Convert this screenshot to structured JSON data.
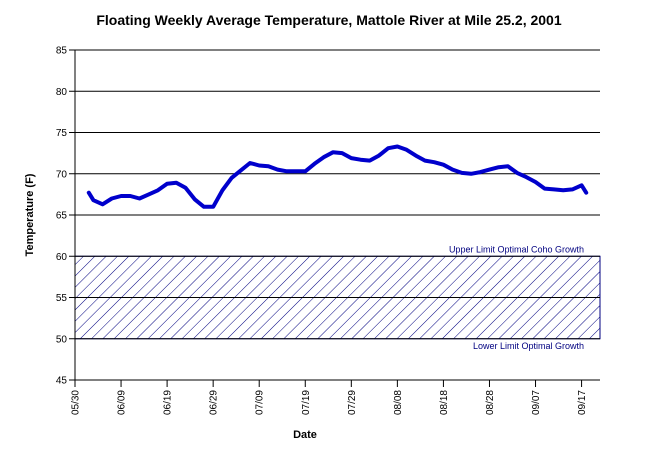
{
  "chart_data": {
    "type": "line",
    "title": "Floating Weekly Average Temperature, Mattole River at Mile 25.2, 2001",
    "xlabel": "Date",
    "ylabel": "Temperature (F)",
    "x": [
      "06/02",
      "06/03",
      "06/05",
      "06/07",
      "06/09",
      "06/11",
      "06/13",
      "06/15",
      "06/17",
      "06/19",
      "06/21",
      "06/23",
      "06/25",
      "06/27",
      "06/29",
      "07/01",
      "07/03",
      "07/05",
      "07/07",
      "07/09",
      "07/11",
      "07/13",
      "07/15",
      "07/17",
      "07/19",
      "07/21",
      "07/23",
      "07/25",
      "07/27",
      "07/29",
      "07/31",
      "08/02",
      "08/04",
      "08/06",
      "08/08",
      "08/10",
      "08/12",
      "08/14",
      "08/16",
      "08/18",
      "08/20",
      "08/22",
      "08/24",
      "08/26",
      "08/28",
      "08/30",
      "09/01",
      "09/03",
      "09/05",
      "09/07",
      "09/09",
      "09/11",
      "09/13",
      "09/15",
      "09/17",
      "09/18"
    ],
    "values": [
      67.7,
      66.8,
      66.3,
      67.0,
      67.3,
      67.3,
      67.0,
      67.5,
      68.0,
      68.8,
      68.9,
      68.3,
      66.9,
      66.0,
      66.0,
      68.0,
      69.5,
      70.4,
      71.3,
      71.0,
      70.9,
      70.5,
      70.3,
      70.3,
      70.3,
      71.2,
      72.0,
      72.6,
      72.5,
      71.9,
      71.7,
      71.6,
      72.2,
      73.1,
      73.3,
      72.9,
      72.2,
      71.6,
      71.4,
      71.1,
      70.5,
      70.1,
      70.0,
      70.2,
      70.5,
      70.8,
      70.9,
      70.1,
      69.6,
      69.0,
      68.2,
      68.1,
      68.0,
      68.1,
      68.6,
      67.7
    ],
    "color": "#0000cc",
    "xlim": [
      "05/30",
      "09/21"
    ],
    "xticks": [
      "05/30",
      "06/09",
      "06/19",
      "06/29",
      "07/09",
      "07/19",
      "07/29",
      "08/08",
      "08/18",
      "08/28",
      "09/07",
      "09/17"
    ],
    "ylim": [
      45,
      85
    ],
    "yticks": [
      45,
      50,
      55,
      60,
      65,
      70,
      75,
      80,
      85
    ],
    "grid": true,
    "band": {
      "lower": 50,
      "upper": 60,
      "upper_label": "Upper Limit Optimal Coho Growth",
      "lower_label": "Lower Limit Optimal Growth",
      "color": "#000080"
    }
  }
}
